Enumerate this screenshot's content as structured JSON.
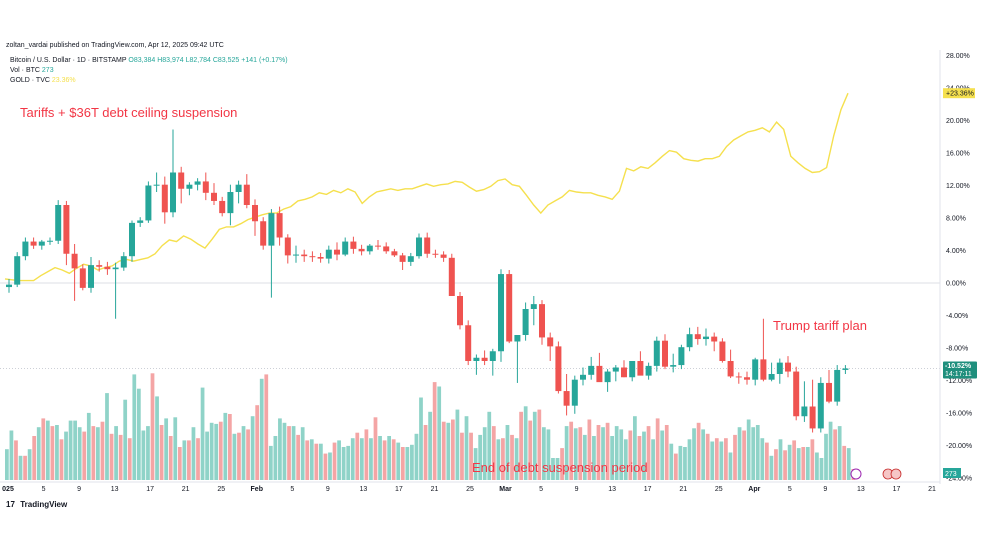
{
  "header": {
    "publish_line": "zoltan_vardai published on TradingView.com, Apr 12, 2025 09:42 UTC"
  },
  "legend": {
    "symbol": "Bitcoin / U.S. Dollar · 1D · BITSTAMP",
    "ohlc": "O83,384 H83,974 L82,784 C83,525 +141 (+0.17%)",
    "vol_label": "Vol · BTC",
    "vol_value": "273",
    "gold_label": "GOLD · TVC",
    "gold_value": "23.36%"
  },
  "footer": {
    "brand": "TradingView",
    "logo": "17"
  },
  "colors": {
    "up": "#26a69a",
    "down": "#ef5350",
    "up_vol": "#8fd3c8",
    "down_vol": "#f4a5a5",
    "gold": "#f5e04e",
    "annotation": "#f23645",
    "badge_up": "#1f8f7d"
  },
  "chart_data": {
    "type": "candlestick",
    "comparison_mode": "percent",
    "y_axis": {
      "unit": "%",
      "range": [
        -24,
        28
      ],
      "ticks": [
        "28.00%",
        "24.00%",
        "20.00%",
        "16.00%",
        "12.00%",
        "8.00%",
        "4.00%",
        "0.00%",
        "-4.00%",
        "-8.00%",
        "-12.00%",
        "-16.00%",
        "-20.00%",
        "-24.00%"
      ]
    },
    "x_axis": {
      "ticks": [
        "025",
        "5",
        "9",
        "13",
        "17",
        "21",
        "25",
        "Feb",
        "5",
        "9",
        "13",
        "17",
        "21",
        "25",
        "Mar",
        "5",
        "9",
        "13",
        "17",
        "21",
        "25",
        "Apr",
        "5",
        "9",
        "13",
        "17",
        "21"
      ]
    },
    "price_badge": {
      "value": "-10.52%",
      "countdown": "14:17:11"
    },
    "gold_badge": "+23.36%",
    "volume_badge": "273",
    "annotations": [
      "Tariffs + $36T debt ceiling suspension",
      "End of debt suspension period",
      "Trump tariff plan"
    ],
    "series": [
      {
        "name": "Bitcoin / U.S. Dollar · 1D · BITSTAMP",
        "ohlc_pct": [
          [
            -0.5,
            0.5,
            -1.2,
            -0.2
          ],
          [
            -0.2,
            3.8,
            -0.5,
            3.3
          ],
          [
            3.3,
            5.6,
            2.8,
            5.1
          ],
          [
            5.1,
            5.6,
            4.2,
            4.6
          ],
          [
            4.6,
            5.3,
            4.1,
            5.1
          ],
          [
            5.1,
            5.6,
            4.7,
            5.2
          ],
          [
            5.2,
            10.2,
            4.8,
            9.6
          ],
          [
            9.6,
            10.1,
            2.2,
            3.6
          ],
          [
            3.6,
            4.8,
            -2.2,
            1.8
          ],
          [
            1.8,
            2.3,
            -0.9,
            -0.6
          ],
          [
            -0.6,
            3.2,
            -1.2,
            2.2
          ],
          [
            2.2,
            2.8,
            1.4,
            2.0
          ],
          [
            2.0,
            2.6,
            1.0,
            1.7
          ],
          [
            1.7,
            2.5,
            -4.4,
            1.9
          ],
          [
            1.9,
            3.8,
            1.5,
            3.3
          ],
          [
            3.3,
            7.7,
            2.6,
            7.4
          ],
          [
            7.4,
            8.1,
            6.9,
            7.7
          ],
          [
            7.7,
            12.5,
            7.4,
            12.0
          ],
          [
            12.0,
            13.6,
            11.2,
            12.1
          ],
          [
            12.1,
            13.1,
            7.3,
            8.7
          ],
          [
            8.7,
            18.9,
            8.1,
            13.6
          ],
          [
            13.6,
            14.3,
            9.8,
            11.6
          ],
          [
            11.6,
            12.4,
            10.8,
            12.1
          ],
          [
            12.1,
            12.9,
            11.4,
            12.5
          ],
          [
            12.5,
            13.6,
            10.2,
            11.1
          ],
          [
            11.1,
            12.3,
            9.6,
            10.1
          ],
          [
            10.1,
            10.6,
            8.2,
            8.6
          ],
          [
            8.6,
            12.1,
            7.1,
            11.2
          ],
          [
            11.2,
            12.6,
            9.8,
            12.1
          ],
          [
            12.1,
            13.4,
            9.2,
            9.6
          ],
          [
            9.6,
            10.3,
            5.8,
            7.6
          ],
          [
            7.6,
            8.1,
            4.1,
            4.6
          ],
          [
            4.6,
            9.1,
            -1.8,
            8.6
          ],
          [
            8.6,
            9.4,
            4.6,
            5.6
          ],
          [
            5.6,
            6.0,
            2.4,
            3.4
          ],
          [
            3.4,
            4.6,
            2.5,
            3.5
          ],
          [
            3.5,
            4.1,
            2.6,
            3.3
          ],
          [
            3.3,
            3.9,
            2.6,
            3.2
          ],
          [
            3.2,
            3.7,
            2.5,
            3.0
          ],
          [
            3.0,
            4.6,
            2.4,
            4.1
          ],
          [
            4.1,
            5.0,
            2.8,
            3.5
          ],
          [
            3.5,
            5.6,
            3.3,
            5.1
          ],
          [
            5.1,
            5.7,
            3.6,
            4.2
          ],
          [
            4.2,
            4.7,
            3.4,
            3.9
          ],
          [
            3.9,
            4.8,
            3.5,
            4.6
          ],
          [
            4.6,
            5.3,
            4.1,
            4.5
          ],
          [
            4.5,
            5.0,
            3.6,
            3.9
          ],
          [
            3.9,
            4.2,
            3.2,
            3.4
          ],
          [
            3.4,
            3.7,
            1.6,
            2.6
          ],
          [
            2.6,
            3.7,
            2.1,
            3.3
          ],
          [
            3.3,
            6.1,
            3.0,
            5.6
          ],
          [
            5.6,
            6.2,
            3.1,
            3.6
          ],
          [
            3.6,
            4.1,
            3.1,
            3.5
          ],
          [
            3.5,
            3.9,
            2.6,
            3.1
          ],
          [
            3.1,
            3.6,
            -1.2,
            -1.6
          ],
          [
            -1.6,
            -1.1,
            -5.7,
            -5.2
          ],
          [
            -5.2,
            -4.6,
            -10.1,
            -9.6
          ],
          [
            -9.6,
            -8.8,
            -11.3,
            -9.2
          ],
          [
            -9.2,
            -8.3,
            -10.1,
            -9.6
          ],
          [
            -9.6,
            -8.1,
            -11.4,
            -8.4
          ],
          [
            -8.4,
            1.7,
            -9.7,
            1.1
          ],
          [
            1.1,
            1.6,
            -7.4,
            -7.2
          ],
          [
            -7.2,
            -6.6,
            -12.3,
            -6.4
          ],
          [
            -6.4,
            -2.4,
            -7.1,
            -3.2
          ],
          [
            -3.2,
            -1.6,
            -5.2,
            -2.6
          ],
          [
            -2.6,
            -2.1,
            -7.6,
            -6.7
          ],
          [
            -6.7,
            -6.1,
            -9.6,
            -7.8
          ],
          [
            -7.8,
            -7.2,
            -13.6,
            -13.3
          ],
          [
            -13.3,
            -11.2,
            -16.3,
            -15.1
          ],
          [
            -15.1,
            -11.4,
            -16.1,
            -11.9
          ],
          [
            -11.9,
            -10.4,
            -12.6,
            -11.3
          ],
          [
            -11.3,
            -9.1,
            -11.9,
            -10.2
          ],
          [
            -10.2,
            -8.6,
            -11.6,
            -12.2
          ],
          [
            -12.2,
            -10.6,
            -13.4,
            -10.9
          ],
          [
            -10.9,
            -10.1,
            -12.1,
            -10.4
          ],
          [
            -10.4,
            -9.5,
            -11.6,
            -11.6
          ],
          [
            -11.6,
            -9.6,
            -12.1,
            -9.6
          ],
          [
            -9.6,
            -8.4,
            -11.2,
            -11.4
          ],
          [
            -11.4,
            -9.8,
            -11.9,
            -10.2
          ],
          [
            -10.2,
            -6.6,
            -10.9,
            -7.1
          ],
          [
            -7.1,
            -6.3,
            -10.6,
            -10.3
          ],
          [
            -10.3,
            -8.7,
            -11.0,
            -10.1
          ],
          [
            -10.1,
            -7.6,
            -10.6,
            -7.9
          ],
          [
            -7.9,
            -5.5,
            -8.4,
            -6.3
          ],
          [
            -6.3,
            -5.4,
            -7.6,
            -6.9
          ],
          [
            -6.9,
            -5.6,
            -7.7,
            -6.6
          ],
          [
            -6.6,
            -6.1,
            -8.4,
            -7.2
          ],
          [
            -7.2,
            -6.8,
            -9.8,
            -9.6
          ],
          [
            -9.6,
            -8.2,
            -11.7,
            -11.5
          ],
          [
            -11.5,
            -11.0,
            -12.4,
            -11.6
          ],
          [
            -11.6,
            -10.9,
            -12.5,
            -11.9
          ],
          [
            -11.9,
            -9.2,
            -12.6,
            -9.4
          ],
          [
            -9.4,
            -4.4,
            -12.1,
            -11.9
          ],
          [
            -11.9,
            -9.8,
            -12.1,
            -11.2
          ],
          [
            -11.2,
            -9.3,
            -12.4,
            -9.8
          ],
          [
            -9.8,
            -9.0,
            -11.6,
            -10.9
          ],
          [
            -10.9,
            -10.3,
            -16.9,
            -16.4
          ],
          [
            -16.4,
            -12.1,
            -17.1,
            -15.2
          ],
          [
            -15.2,
            -11.9,
            -18.4,
            -17.9
          ],
          [
            -17.9,
            -11.6,
            -18.4,
            -12.3
          ],
          [
            -12.3,
            -10.7,
            -14.8,
            -14.6
          ],
          [
            -14.6,
            -10.1,
            -15.1,
            -10.7
          ],
          [
            -10.7,
            -10.1,
            -11.2,
            -10.52
          ]
        ]
      },
      {
        "name": "GOLD · TVC",
        "values_pct": [
          0.5,
          0.4,
          0.3,
          0.3,
          0.3,
          0.9,
          1.4,
          1.9,
          1.6,
          1.2,
          1.8,
          2.3,
          2.1,
          1.6,
          1.9,
          2.1,
          2.7,
          2.9,
          2.7,
          2.9,
          3.1,
          3.6,
          4.6,
          5.3,
          5.1,
          5.8,
          5.4,
          4.8,
          4.3,
          5.4,
          6.6,
          6.9,
          6.9,
          7.3,
          7.8,
          8.1,
          8.4,
          8.6,
          8.6,
          9.1,
          9.4,
          10.1,
          10.3,
          10.6,
          11.1,
          10.9,
          11.4,
          11.1,
          11.6,
          11.2,
          9.8,
          10.6,
          11.2,
          11.4,
          11.6,
          11.4,
          11.6,
          11.6,
          11.9,
          12.2,
          11.9,
          12.1,
          12.2,
          12.5,
          12.4,
          11.8,
          11.3,
          11.5,
          11.9,
          12.6,
          12.8,
          12.1,
          11.9,
          10.8,
          9.6,
          8.6,
          9.6,
          10.1,
          10.6,
          11.4,
          11.2,
          11.1,
          11.1,
          10.8,
          10.6,
          10.3,
          11.3,
          14.1,
          13.8,
          14.3,
          14.1,
          14.8,
          15.6,
          16.3,
          16.1,
          15.3,
          15.1,
          15.0,
          15.3,
          15.3,
          15.6,
          16.8,
          17.6,
          18.1,
          18.6,
          18.8,
          19.1,
          18.6,
          19.8,
          18.9,
          15.6,
          14.8,
          14.1,
          13.6,
          13.7,
          14.2,
          18.1,
          21.3,
          23.36
        ]
      },
      {
        "name": "Vol · BTC",
        "values_rel": [
          0.28,
          0.45,
          0.36,
          0.22,
          0.22,
          0.28,
          0.4,
          0.48,
          0.56,
          0.54,
          0.49,
          0.5,
          0.37,
          0.44,
          0.54,
          0.54,
          0.48,
          0.44,
          0.61,
          0.49,
          0.48,
          0.53,
          0.79,
          0.42,
          0.49,
          0.41,
          0.73,
          0.38,
          0.96,
          0.83,
          0.45,
          0.49,
          0.97,
          0.76,
          0.5,
          0.56,
          0.4,
          0.57,
          0.3,
          0.36,
          0.36,
          0.48,
          0.38,
          0.84,
          0.44,
          0.52,
          0.51,
          0.53,
          0.61,
          0.6,
          0.42,
          0.43,
          0.49,
          0.46,
          0.58,
          0.68,
          0.92,
          0.96,
          0.31,
          0.4,
          0.56,
          0.52,
          0.49,
          0.49,
          0.41,
          0.48,
          0.36,
          0.37,
          0.33,
          0.33,
          0.24,
          0.25,
          0.34,
          0.36,
          0.3,
          0.31,
          0.38,
          0.43,
          0.38,
          0.46,
          0.38,
          0.57,
          0.4,
          0.36,
          0.4,
          0.37,
          0.34,
          0.3,
          0.3,
          0.32,
          0.42,
          0.75,
          0.5,
          0.62,
          0.89,
          0.85,
          0.53,
          0.52,
          0.55,
          0.64,
          0.43,
          0.58,
          0.43,
          0.29,
          0.41,
          0.48,
          0.62,
          0.49,
          0.37,
          0.38,
          0.5,
          0.41,
          0.38,
          0.62,
          0.67,
          0.54,
          0.62,
          0.64,
          0.48,
          0.46,
          0.2,
          0.2,
          0.29,
          0.49,
          0.53,
          0.47,
          0.48,
          0.41,
          0.55,
          0.4,
          0.5,
          0.48,
          0.52,
          0.4,
          0.49,
          0.46,
          0.37,
          0.45,
          0.58,
          0.4,
          0.44,
          0.49,
          0.37,
          0.56,
          0.45,
          0.5,
          0.33,
          0.24,
          0.31,
          0.3,
          0.37,
          0.47,
          0.52,
          0.46,
          0.42,
          0.35,
          0.38,
          0.35,
          0.38,
          0.25,
          0.41,
          0.48,
          0.45,
          0.55,
          0.48,
          0.5,
          0.38,
          0.34,
          0.22,
          0.28,
          0.37,
          0.27,
          0.32,
          0.36,
          0.29,
          0.3,
          0.3,
          0.37,
          0.25,
          0.2,
          0.42,
          0.53,
          0.46,
          0.49,
          0.31,
          0.29,
          0.1
        ]
      }
    ]
  }
}
